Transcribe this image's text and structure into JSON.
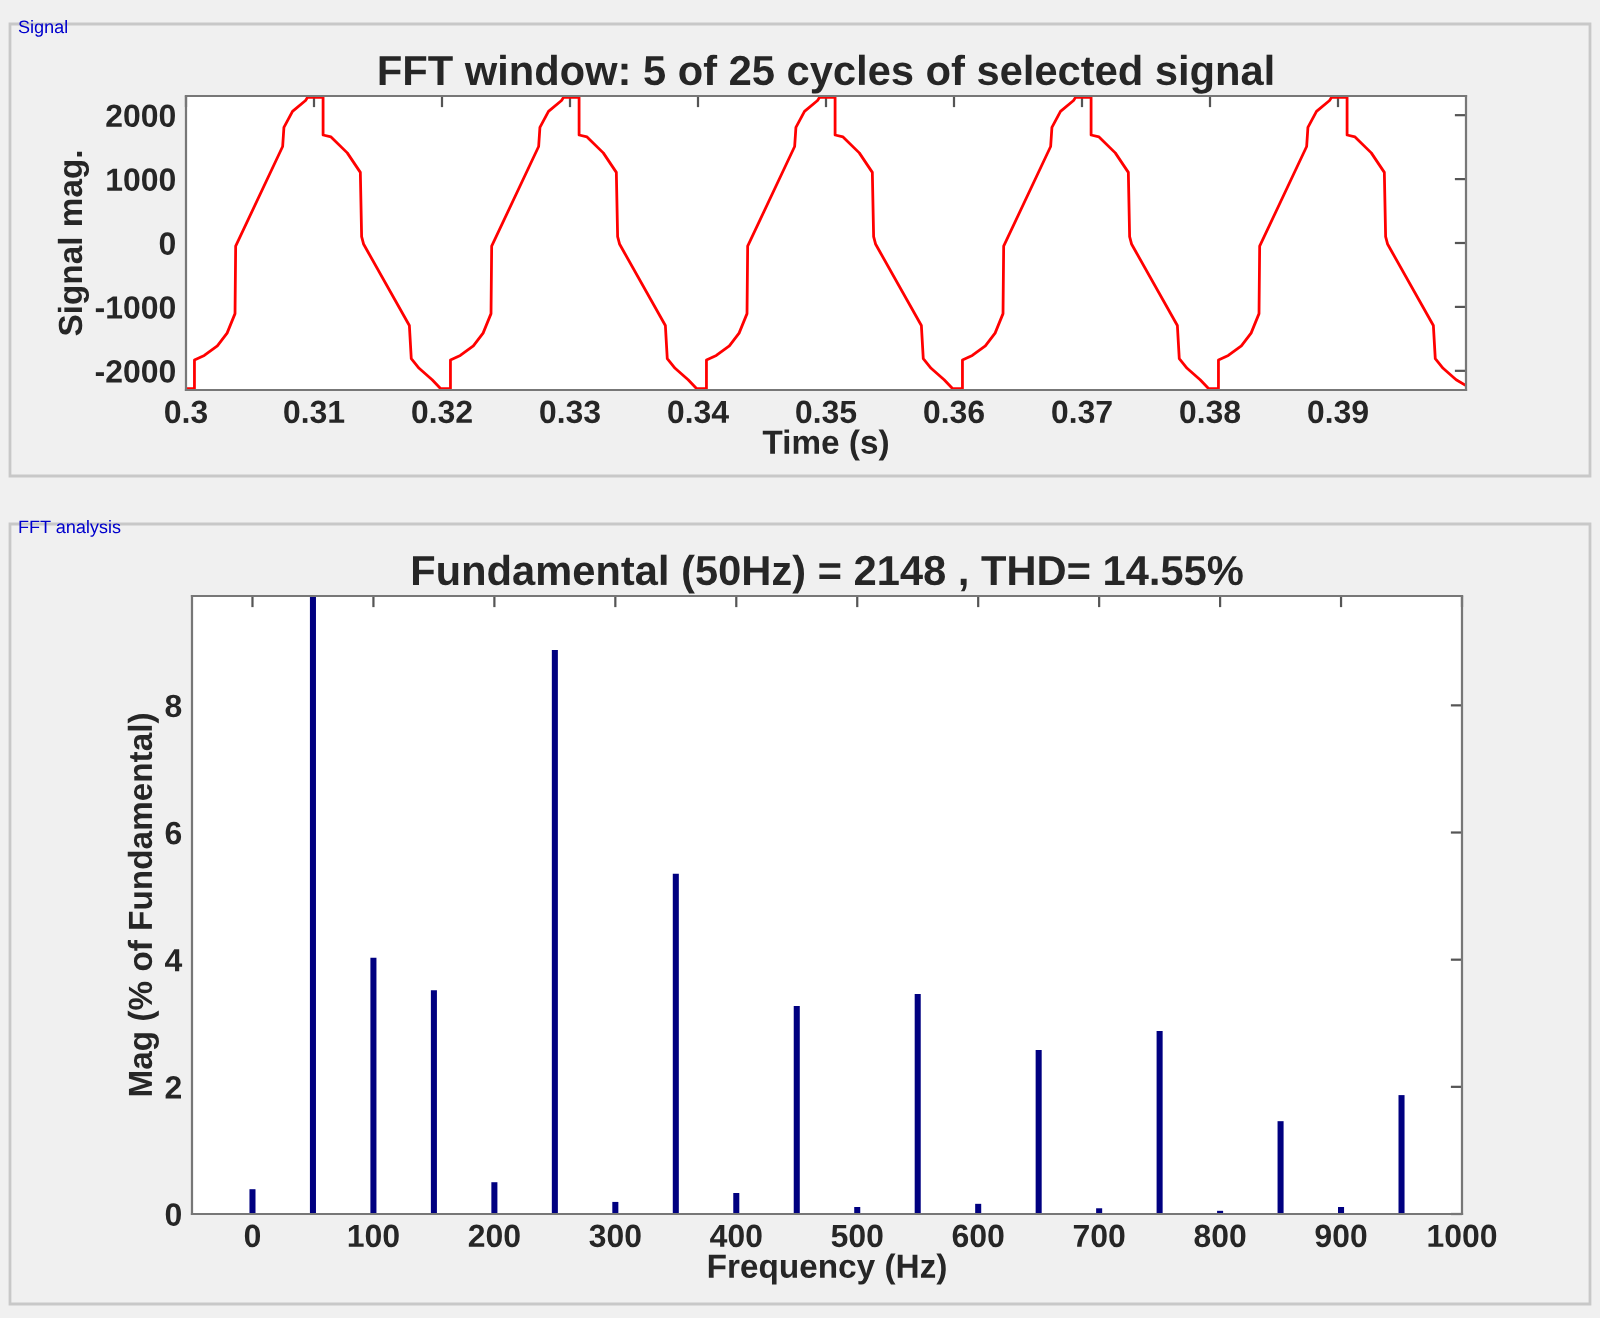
{
  "chart_data": [
    {
      "type": "line",
      "title": "FFT window: 5 of 25 cycles of selected signal",
      "xlabel": "Time (s)",
      "ylabel": "Signal mag.",
      "annotations": [
        "Signal"
      ],
      "xlim": [
        0.3,
        0.4
      ],
      "xticks": [
        0.3,
        0.31,
        0.32,
        0.33,
        0.34,
        0.35,
        0.36,
        0.37,
        0.38,
        0.39
      ],
      "ylim": [
        -2300,
        2300
      ],
      "yticks": [
        -2000,
        -1000,
        0,
        1000,
        2000
      ],
      "grid": false,
      "marker": "none",
      "line_style": "solid",
      "series": [
        {
          "color": "#ff0000",
          "x": [
            0.3,
            0.30066,
            0.30066,
            0.30143,
            0.30245,
            0.30321,
            0.30383,
            0.30388,
            0.30755,
            0.30765,
            0.30832,
            0.30934,
            0.3095,
            0.31071,
            0.31071,
            0.31133,
            0.3126,
            0.31362,
            0.31372,
            0.31388,
            0.31745,
            0.3176,
            0.31821,
            0.31923,
            0.3199,
            0.32066,
            0.32066,
            0.32143,
            0.32245,
            0.32321,
            0.32383,
            0.32388,
            0.32755,
            0.32765,
            0.32832,
            0.32934,
            0.3295,
            0.33071,
            0.33071,
            0.33133,
            0.3326,
            0.33362,
            0.33372,
            0.33388,
            0.33745,
            0.3376,
            0.33821,
            0.33923,
            0.3399,
            0.34066,
            0.34066,
            0.34143,
            0.34245,
            0.34321,
            0.34383,
            0.34388,
            0.34755,
            0.34765,
            0.34832,
            0.34934,
            0.3495,
            0.35071,
            0.35071,
            0.35133,
            0.3526,
            0.35362,
            0.35372,
            0.35388,
            0.35745,
            0.3576,
            0.35821,
            0.35923,
            0.3599,
            0.36066,
            0.36066,
            0.36143,
            0.36245,
            0.36321,
            0.36383,
            0.36388,
            0.36755,
            0.36765,
            0.36832,
            0.36934,
            0.3695,
            0.37071,
            0.37071,
            0.37133,
            0.3726,
            0.37362,
            0.37372,
            0.37388,
            0.37745,
            0.3776,
            0.37821,
            0.37923,
            0.3799,
            0.38066,
            0.38066,
            0.38143,
            0.38245,
            0.38321,
            0.38383,
            0.38388,
            0.38755,
            0.38765,
            0.38832,
            0.38934,
            0.3895,
            0.39071,
            0.39071,
            0.39133,
            0.3926,
            0.39362,
            0.39372,
            0.39388,
            0.39745,
            0.3976,
            0.39821,
            0.39923,
            0.4
          ],
          "values": [
            -2280,
            -2280,
            -1830,
            -1760,
            -1610,
            -1410,
            -1105,
            -50,
            1510,
            1810,
            2060,
            2230,
            2280,
            2280,
            1690,
            1660,
            1410,
            1105,
            100,
            -20,
            -1290,
            -1810,
            -1960,
            -2140,
            -2280,
            -2280,
            -1830,
            -1760,
            -1610,
            -1410,
            -1105,
            -50,
            1510,
            1810,
            2060,
            2230,
            2280,
            2280,
            1690,
            1660,
            1410,
            1105,
            100,
            -20,
            -1290,
            -1810,
            -1960,
            -2140,
            -2280,
            -2280,
            -1830,
            -1760,
            -1610,
            -1410,
            -1105,
            -50,
            1510,
            1810,
            2060,
            2230,
            2280,
            2280,
            1690,
            1660,
            1410,
            1105,
            100,
            -20,
            -1290,
            -1810,
            -1960,
            -2140,
            -2280,
            -2280,
            -1830,
            -1760,
            -1610,
            -1410,
            -1105,
            -50,
            1510,
            1810,
            2060,
            2230,
            2280,
            2280,
            1690,
            1660,
            1410,
            1105,
            100,
            -20,
            -1290,
            -1810,
            -1960,
            -2140,
            -2280,
            -2280,
            -1830,
            -1760,
            -1610,
            -1410,
            -1105,
            -50,
            1510,
            1810,
            2060,
            2230,
            2280,
            2280,
            1690,
            1660,
            1410,
            1105,
            100,
            -20,
            -1290,
            -1810,
            -1960,
            -2140,
            -2230
          ]
        }
      ]
    },
    {
      "type": "bar",
      "title": "Fundamental (50Hz) = 2148 , THD= 14.55%",
      "xlabel": "Frequency (Hz)",
      "ylabel": "Mag (% of Fundamental)",
      "annotations": [
        "FFT analysis"
      ],
      "xlim": [
        -50,
        1000
      ],
      "xticks": [
        0,
        100,
        200,
        300,
        400,
        500,
        600,
        700,
        800,
        900,
        1000
      ],
      "ylim": [
        0,
        9.72
      ],
      "yticks": [
        0,
        2,
        4,
        6,
        8
      ],
      "grid": false,
      "series": [
        {
          "color": "#000080",
          "x": [
            0,
            50,
            100,
            150,
            200,
            250,
            300,
            350,
            400,
            450,
            500,
            550,
            600,
            650,
            700,
            750,
            800,
            850,
            900,
            950
          ],
          "values": [
            0.39,
            9.72,
            4.03,
            3.52,
            0.5,
            8.87,
            0.19,
            5.35,
            0.33,
            3.27,
            0.11,
            3.46,
            0.16,
            2.58,
            0.09,
            2.88,
            0.05,
            1.46,
            0.11,
            1.87
          ]
        }
      ]
    }
  ]
}
